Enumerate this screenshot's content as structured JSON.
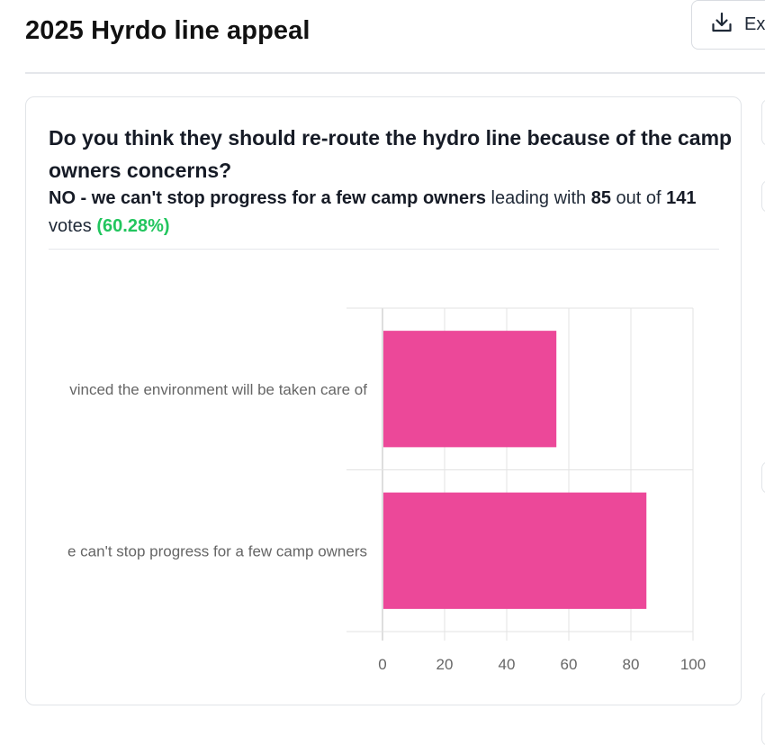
{
  "header": {
    "title": "2025 Hyrdo line appeal",
    "export_label": "Ex",
    "export_icon": "download-icon"
  },
  "poll": {
    "question": "Do you think they should re-route the hydro line because of the camp owners concerns?",
    "leader": "NO - we can't stop progress for a few camp owners",
    "leading_with_text": "leading with",
    "leader_votes": "85",
    "out_of_text": "out of",
    "total_votes": "141",
    "votes_text": "votes",
    "leader_pct": "(60.28%)"
  },
  "chart_data": {
    "type": "bar",
    "orientation": "horizontal",
    "categories": [
      "YES - I'm not convinced the environment will be taken care of",
      "NO - we can't stop progress for a few camp owners"
    ],
    "category_labels_visible": [
      "vinced the environment will be taken care of",
      "e can't stop progress for a few camp owners"
    ],
    "values": [
      56,
      85
    ],
    "xlim": [
      0,
      100
    ],
    "xticks": [
      "0",
      "20",
      "40",
      "60",
      "80",
      "100"
    ],
    "grid": true,
    "bar_color": "#ec4899",
    "title": "",
    "xlabel": "",
    "ylabel": ""
  }
}
